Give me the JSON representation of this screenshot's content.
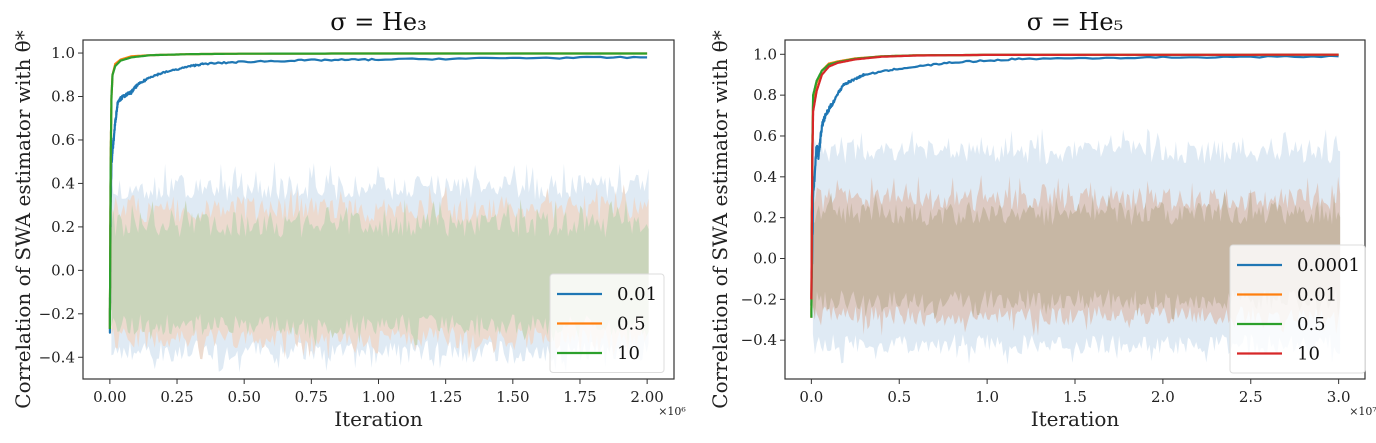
{
  "chart_data": [
    {
      "type": "line",
      "title": "σ = He₃",
      "xlabel": "Iteration",
      "x_multiplier": "×10⁶",
      "ylabel": "Correlation of SWA estimator with θ*",
      "xlim": [
        -0.1,
        2.1
      ],
      "ylim": [
        -0.5,
        1.06
      ],
      "xticks": [
        "0.00",
        "0.25",
        "0.50",
        "0.75",
        "1.00",
        "1.25",
        "1.50",
        "1.75",
        "2.00"
      ],
      "xtick_values": [
        0,
        0.25,
        0.5,
        0.75,
        1.0,
        1.25,
        1.5,
        1.75,
        2.0
      ],
      "yticks": [
        "−0.4",
        "−0.2",
        "0.0",
        "0.2",
        "0.4",
        "0.6",
        "0.8",
        "1.0"
      ],
      "ytick_values": [
        -0.4,
        -0.2,
        0,
        0.2,
        0.4,
        0.6,
        0.8,
        1.0
      ],
      "grid": false,
      "legend_position": "lower-right",
      "series": [
        {
          "name": "0.01",
          "color": "#1f77b4",
          "x": [
            0,
            0.003,
            0.006,
            0.01,
            0.02,
            0.03,
            0.05,
            0.08,
            0.1,
            0.15,
            0.2,
            0.3,
            0.35,
            0.5,
            0.75,
            1.0,
            1.5,
            2.0
          ],
          "y": [
            -0.27,
            0.3,
            0.5,
            0.55,
            0.68,
            0.78,
            0.8,
            0.82,
            0.85,
            0.89,
            0.91,
            0.94,
            0.95,
            0.96,
            0.967,
            0.97,
            0.977,
            0.98
          ],
          "noise_range": [
            -0.42,
            0.44
          ]
        },
        {
          "name": "0.5",
          "color": "#ff7f0e",
          "x": [
            0,
            0.003,
            0.006,
            0.01,
            0.02,
            0.04,
            0.08,
            0.15,
            0.3,
            0.5,
            1.0,
            2.0
          ],
          "y": [
            -0.27,
            0.5,
            0.8,
            0.9,
            0.95,
            0.97,
            0.985,
            0.99,
            0.995,
            0.997,
            0.998,
            0.998
          ],
          "noise_range": [
            -0.4,
            0.38
          ]
        },
        {
          "name": "10",
          "color": "#2ca02c",
          "x": [
            0,
            0.003,
            0.006,
            0.01,
            0.02,
            0.04,
            0.08,
            0.15,
            0.3,
            0.5,
            1.0,
            2.0
          ],
          "y": [
            -0.27,
            0.5,
            0.8,
            0.9,
            0.94,
            0.965,
            0.98,
            0.99,
            0.995,
            0.997,
            0.998,
            0.998
          ],
          "noise_range": [
            -0.38,
            0.36
          ]
        }
      ]
    },
    {
      "type": "line",
      "title": "σ = He₅",
      "xlabel": "Iteration",
      "x_multiplier": "×10⁷",
      "ylabel": "Correlation of SWA estimator with θ*",
      "xlim": [
        -0.15,
        3.15
      ],
      "ylim": [
        -0.59,
        1.07
      ],
      "xticks": [
        "0.0",
        "0.5",
        "1.0",
        "1.5",
        "2.0",
        "2.5",
        "3.0"
      ],
      "xtick_values": [
        0,
        0.5,
        1.0,
        1.5,
        2.0,
        2.5,
        3.0
      ],
      "yticks": [
        "−0.4",
        "−0.2",
        "0.0",
        "0.2",
        "0.4",
        "0.6",
        "0.8",
        "1.0"
      ],
      "ytick_values": [
        -0.4,
        -0.2,
        0,
        0.2,
        0.4,
        0.6,
        0.8,
        1.0
      ],
      "grid": false,
      "legend_position": "lower-right",
      "series": [
        {
          "name": "0.0001",
          "color": "#1f77b4",
          "x": [
            0,
            0.01,
            0.03,
            0.04,
            0.06,
            0.08,
            0.12,
            0.18,
            0.25,
            0.3,
            0.5,
            0.8,
            1.2,
            2.0,
            3.0
          ],
          "y": [
            -0.2,
            0.3,
            0.55,
            0.5,
            0.65,
            0.7,
            0.76,
            0.85,
            0.88,
            0.9,
            0.93,
            0.96,
            0.978,
            0.985,
            0.99
          ],
          "noise_range": [
            -0.5,
            0.6
          ]
        },
        {
          "name": "0.01",
          "color": "#ff7f0e",
          "x": [
            0,
            0.005,
            0.01,
            0.03,
            0.06,
            0.1,
            0.15,
            0.25,
            0.4,
            0.6,
            1.0,
            3.0
          ],
          "y": [
            -0.29,
            0.5,
            0.78,
            0.86,
            0.92,
            0.955,
            0.965,
            0.98,
            0.99,
            0.995,
            0.997,
            0.998
          ],
          "noise_range": [
            -0.35,
            0.36
          ]
        },
        {
          "name": "0.5",
          "color": "#2ca02c",
          "x": [
            0,
            0.005,
            0.01,
            0.03,
            0.06,
            0.1,
            0.15,
            0.25,
            0.4,
            0.6,
            1.0,
            3.0
          ],
          "y": [
            -0.29,
            0.5,
            0.8,
            0.87,
            0.92,
            0.95,
            0.962,
            0.978,
            0.99,
            0.995,
            0.997,
            0.998
          ],
          "noise_range": [
            -0.35,
            0.35
          ]
        },
        {
          "name": "10",
          "color": "#d62728",
          "x": [
            0,
            0.005,
            0.01,
            0.03,
            0.06,
            0.1,
            0.15,
            0.25,
            0.4,
            0.6,
            1.0,
            3.0
          ],
          "y": [
            -0.2,
            0.45,
            0.72,
            0.82,
            0.9,
            0.94,
            0.958,
            0.975,
            0.988,
            0.994,
            0.997,
            0.998
          ],
          "noise_range": [
            -0.35,
            0.35
          ]
        }
      ]
    }
  ]
}
